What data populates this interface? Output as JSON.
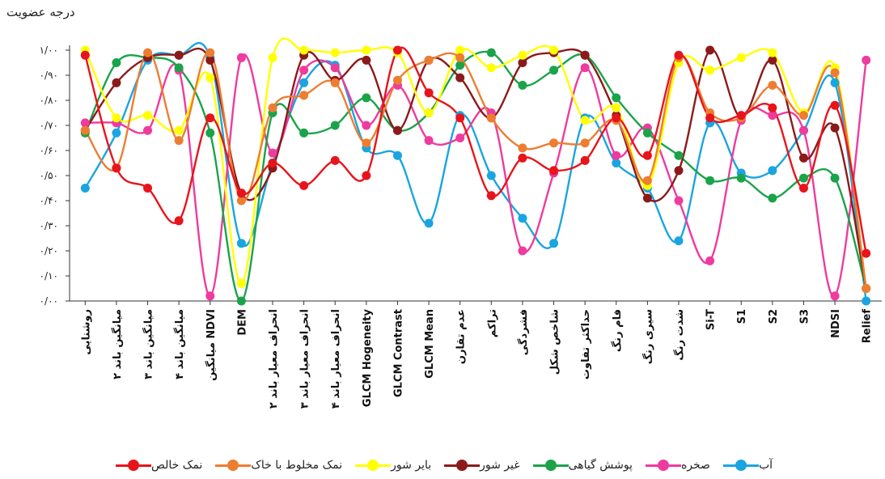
{
  "chart_data": {
    "type": "line",
    "ylabel": "درجه عضویت",
    "xlabel": "",
    "ylim": [
      0,
      1
    ],
    "ytick_labels": [
      "۰/۰۰",
      "۰/۱۰",
      "۰/۲۰",
      "۰/۳۰",
      "۰/۴۰",
      "۰/۵۰",
      "۰/۶۰",
      "۰/۷۰",
      "۰/۸۰",
      "۰/۹۰",
      "۱/۰۰"
    ],
    "categories": [
      "روشنایی",
      "میانگین باند ۲",
      "میانگین باند ۳",
      "میانگین باند ۴",
      "میانگین NDVI",
      "DEM",
      "انحراف معیار باند ۲",
      "انحراف معیار باند ۳",
      "انحراف معیار باند ۴",
      "GLCM Hogeneity",
      "GLCM Contrast",
      "GLCM Mean",
      "عدم تقارن",
      "تراکم",
      "فشردگی",
      "شاخص شکل",
      "حداکثر تفاوت",
      "فام رنگ",
      "سیری رنگ",
      "شدت رنگ",
      "Si-T",
      "S1",
      "S2",
      "S3",
      "NDSI",
      "Relief"
    ],
    "series": [
      {
        "name": "نمک خالص",
        "color": "#e8141b",
        "values": [
          0.98,
          0.53,
          0.45,
          0.32,
          0.73,
          0.43,
          0.55,
          0.46,
          0.56,
          0.5,
          1.0,
          0.83,
          0.73,
          0.42,
          0.57,
          0.52,
          0.56,
          0.73,
          0.58,
          0.98,
          0.73,
          0.74,
          0.77,
          0.45,
          0.78,
          0.19
        ]
      },
      {
        "name": "نمک مخلوط با خاک",
        "color": "#ed7d31",
        "values": [
          0.68,
          0.53,
          0.99,
          0.64,
          0.99,
          0.4,
          0.77,
          0.82,
          0.87,
          0.63,
          0.88,
          0.96,
          0.97,
          0.73,
          0.61,
          0.63,
          0.63,
          0.72,
          0.48,
          0.97,
          0.75,
          0.73,
          0.86,
          0.74,
          0.91,
          0.05
        ]
      },
      {
        "name": "بایر شور",
        "color": "#ffff00",
        "values": [
          1.0,
          0.73,
          0.74,
          0.68,
          0.89,
          0.07,
          0.97,
          1.0,
          0.99,
          1.0,
          0.99,
          0.75,
          1.0,
          0.93,
          0.98,
          1.0,
          0.72,
          0.77,
          0.46,
          0.95,
          0.92,
          0.97,
          0.99,
          0.75,
          0.93,
          0.05
        ]
      },
      {
        "name": "غیر شور",
        "color": "#8b1a1a",
        "values": [
          0.68,
          0.87,
          0.97,
          0.98,
          0.96,
          0.43,
          0.53,
          0.98,
          0.88,
          0.96,
          0.68,
          0.96,
          0.89,
          0.73,
          0.95,
          0.99,
          0.98,
          0.74,
          0.41,
          0.52,
          1.0,
          0.73,
          0.96,
          0.57,
          0.69,
          0.05
        ]
      },
      {
        "name": "پوشش گیاهی",
        "color": "#1ba34a",
        "values": [
          0.67,
          0.95,
          0.97,
          0.93,
          0.67,
          0.0,
          0.75,
          0.67,
          0.7,
          0.81,
          0.68,
          0.75,
          0.94,
          0.99,
          0.86,
          0.92,
          0.98,
          0.81,
          0.67,
          0.58,
          0.48,
          0.49,
          0.41,
          0.49,
          0.49,
          0.05
        ]
      },
      {
        "name": "صخره",
        "color": "#ee3b9e",
        "values": [
          0.71,
          0.71,
          0.68,
          0.92,
          0.02,
          0.97,
          0.59,
          0.92,
          0.93,
          0.7,
          0.86,
          0.64,
          0.65,
          0.75,
          0.2,
          0.51,
          0.93,
          0.58,
          0.69,
          0.4,
          0.16,
          0.72,
          0.74,
          0.68,
          0.02,
          0.96
        ]
      },
      {
        "name": "آب",
        "color": "#1aa5e0",
        "values": [
          0.45,
          0.67,
          0.96,
          0.98,
          0.97,
          0.23,
          0.55,
          0.87,
          0.94,
          0.61,
          0.58,
          0.31,
          0.74,
          0.5,
          0.33,
          0.23,
          0.73,
          0.55,
          0.45,
          0.24,
          0.71,
          0.51,
          0.52,
          0.68,
          0.87,
          0.0
        ]
      }
    ],
    "legend_position": "bottom",
    "grid": false
  }
}
